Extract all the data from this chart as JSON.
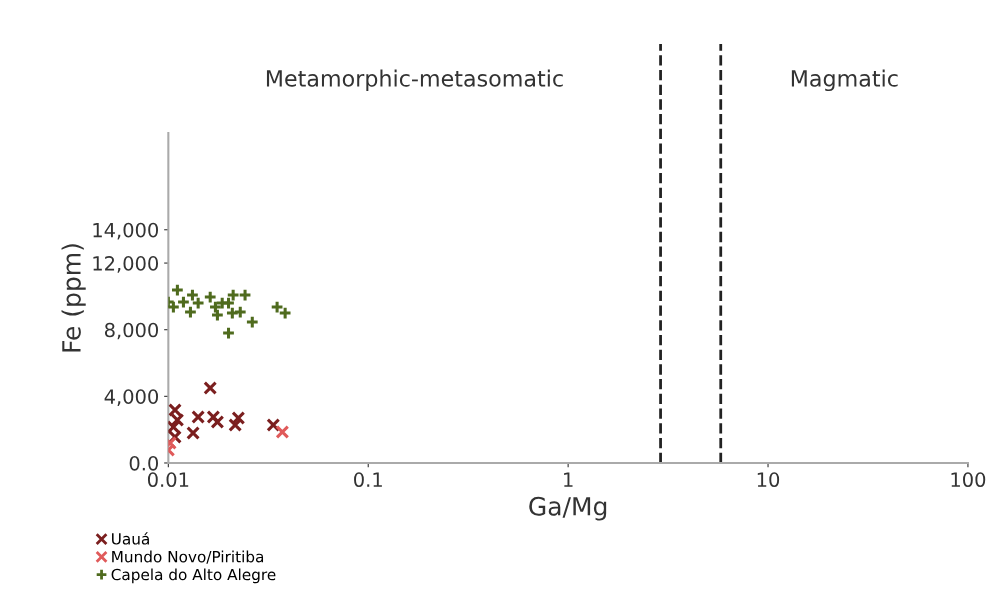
{
  "chart_data": {
    "type": "scatter",
    "xlabel": "Ga/Mg",
    "ylabel": "Fe (ppm)",
    "log": "x",
    "xlim": [
      0.01,
      100
    ],
    "xticks": [
      0.01,
      0.1,
      1,
      10,
      100
    ],
    "ylim": [
      0,
      19800
    ],
    "yticks": [
      {
        "value": 0,
        "label": "0.0"
      },
      {
        "value": 4000,
        "label": "4,000"
      },
      {
        "value": 8000,
        "label": "8,000"
      },
      {
        "value": 12000,
        "label": "12,000"
      },
      {
        "value": 14000,
        "label": "14,000"
      }
    ],
    "grid": false,
    "legend": "bottom left",
    "ref_lines": [
      {
        "axis": "x",
        "value": 2.9,
        "line_style": "dashed",
        "color": "#222222"
      },
      {
        "axis": "x",
        "value": 5.8,
        "line_style": "dashed",
        "color": "#222222"
      }
    ],
    "annotations": [
      "Metamorphic-metasomatic",
      "Magmatic"
    ],
    "series": [
      {
        "name": "Uauá",
        "color": "#7b1f1f",
        "marker": "cross",
        "x": [
          0.0108,
          0.0111,
          0.0106,
          0.0108,
          0.0141,
          0.0133,
          0.0162,
          0.0168,
          0.0176,
          0.0224,
          0.0216,
          0.0335
        ],
        "values": [
          3180,
          2580,
          2160,
          1560,
          2760,
          1800,
          4500,
          2760,
          2460,
          2700,
          2280,
          2280
        ]
      },
      {
        "name": "Mundo Novo/Piritiba",
        "color": "#e05a5a",
        "marker": "cross",
        "x": [
          0.0102,
          0.01,
          0.0372
        ],
        "values": [
          1200,
          780,
          1860
        ]
      },
      {
        "name": "Capela do Alto Alegre",
        "color": "#4f6b1e",
        "marker": "plus",
        "x": [
          0.01,
          0.0111,
          0.0106,
          0.0119,
          0.0132,
          0.0129,
          0.0141,
          0.0162,
          0.0172,
          0.0176,
          0.0186,
          0.02,
          0.0209,
          0.0211,
          0.0229,
          0.0242,
          0.0263,
          0.02,
          0.035,
          0.0384
        ],
        "values": [
          9660,
          10380,
          9360,
          9660,
          10080,
          9060,
          9600,
          9960,
          9360,
          8880,
          9600,
          9600,
          9000,
          10080,
          9060,
          10080,
          8460,
          7800,
          9360,
          9000
        ]
      }
    ]
  }
}
